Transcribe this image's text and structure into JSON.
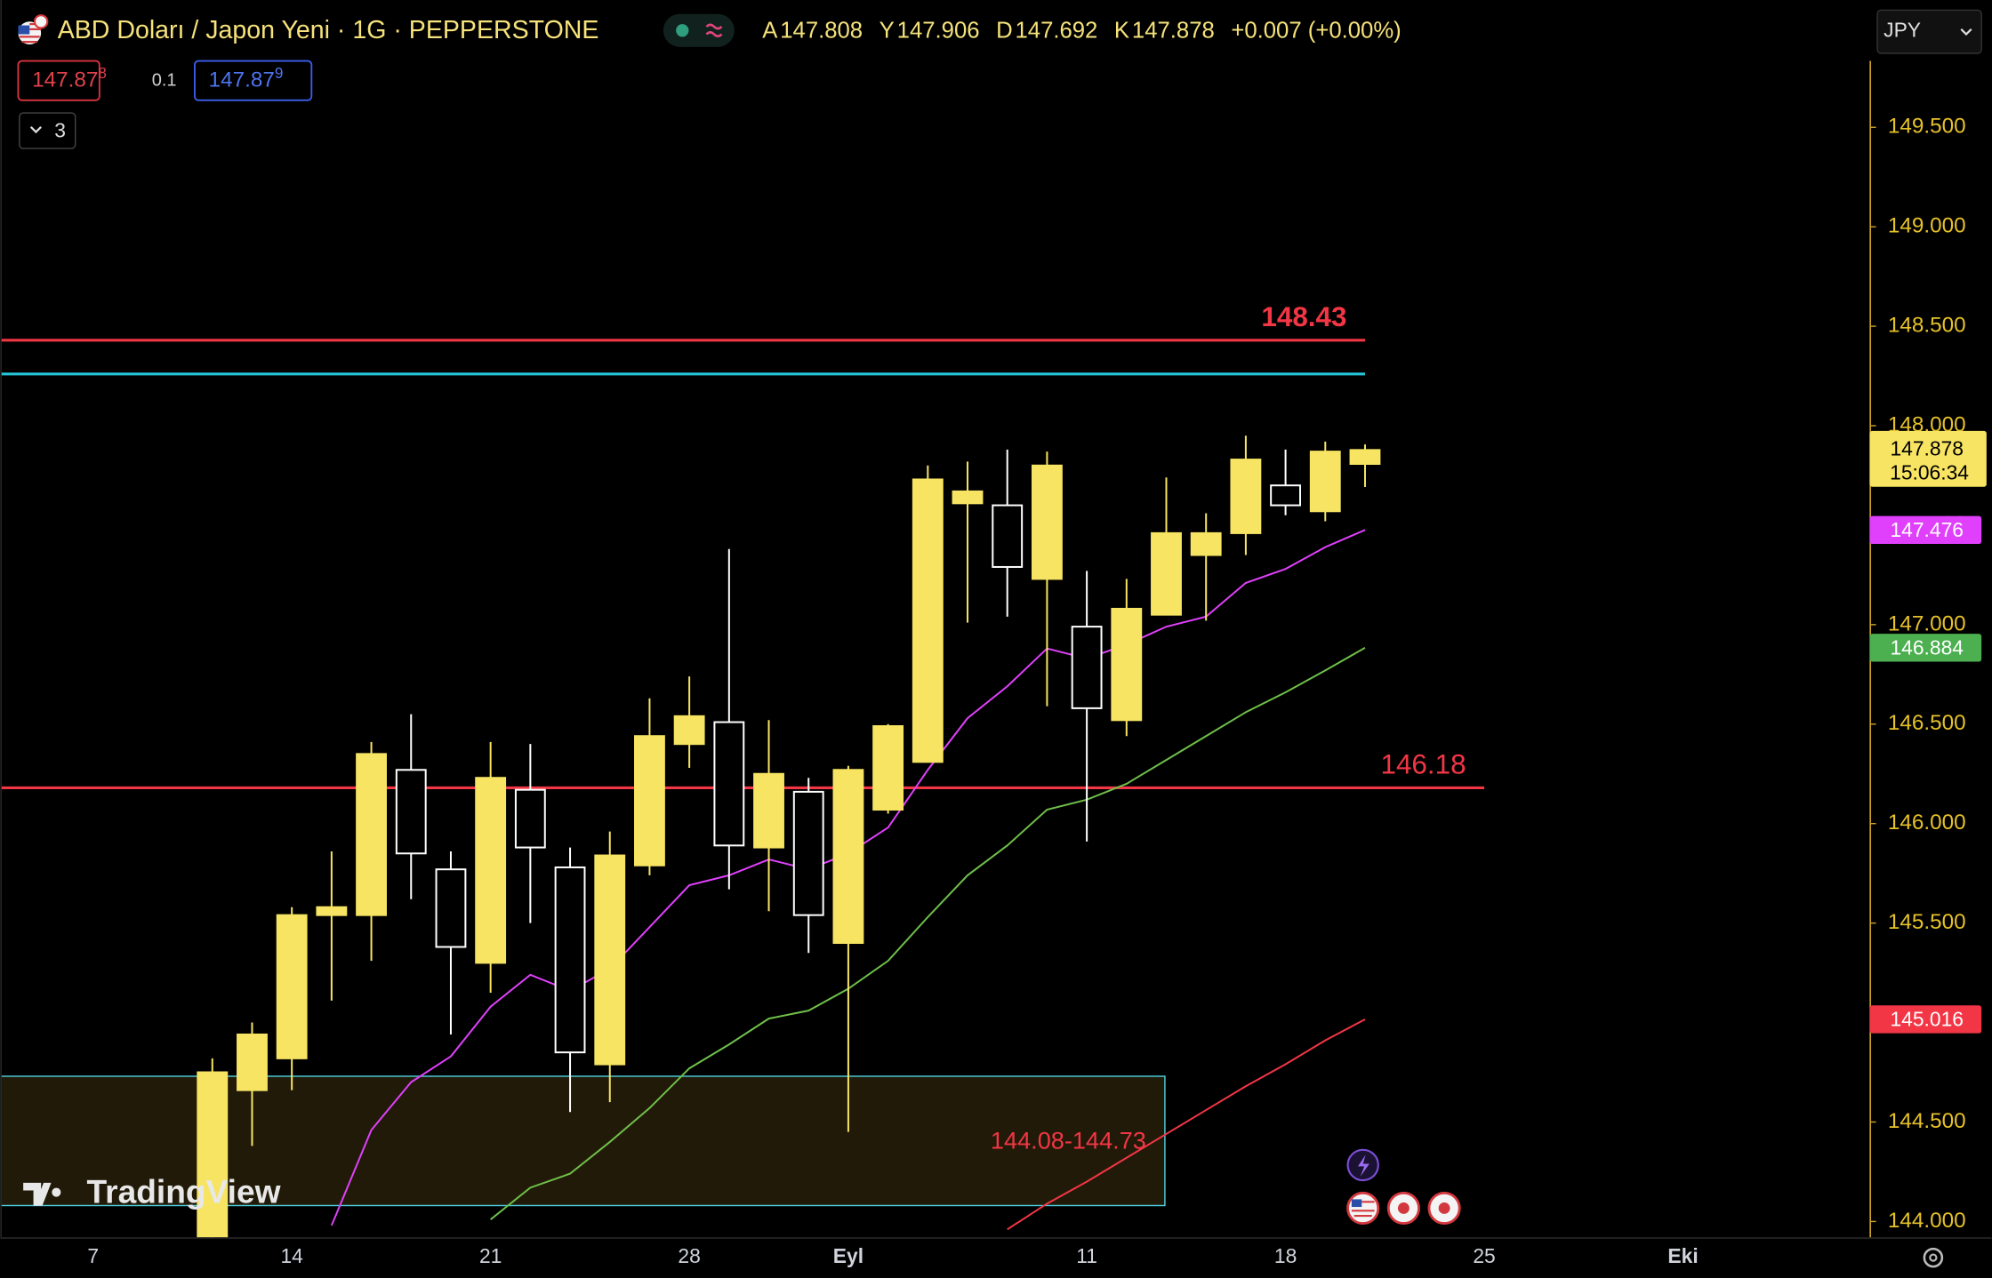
{
  "header": {
    "symbol_title": "ABD Doları / Japon Yeni · 1G · PEPPERSTONE",
    "ohlc_labels": [
      "A",
      "Y",
      "D",
      "K"
    ],
    "change": "+0.007 (+0.00%)",
    "bid": {
      "price": "147.87",
      "pip": "8"
    },
    "spread": 0.1,
    "ask": {
      "price": "147.87",
      "pip": "9"
    },
    "indicator_count": 3,
    "currency": "JPY",
    "countdown": "15:06:34",
    "logo": "TradingView"
  },
  "chart_data": {
    "type": "candlestick",
    "categories": [
      "7",
      null,
      null,
      null,
      null,
      "14",
      null,
      null,
      null,
      null,
      "21",
      null,
      null,
      null,
      null,
      "28",
      null,
      null,
      null,
      "Eyl",
      null,
      null,
      null,
      null,
      null,
      "11",
      null,
      null,
      null,
      null,
      "18",
      null,
      null,
      null,
      null,
      "25",
      null,
      null,
      null,
      null,
      "Eki"
    ],
    "open": [
      null,
      null,
      null,
      143.88,
      144.66,
      144.82,
      145.54,
      145.54,
      146.27,
      145.77,
      145.3,
      146.17,
      145.78,
      144.79,
      145.79,
      146.4,
      146.51,
      145.88,
      146.16,
      145.4,
      146.07,
      146.31,
      147.61,
      147.6,
      147.23,
      146.99,
      146.52,
      147.05,
      147.35,
      147.46,
      147.7,
      147.57,
      147.808,
      null,
      null,
      null,
      null,
      null,
      null,
      null,
      null
    ],
    "high": [
      null,
      null,
      null,
      144.82,
      145.0,
      145.58,
      145.86,
      146.41,
      146.55,
      145.86,
      146.41,
      146.4,
      145.88,
      145.96,
      146.63,
      146.74,
      147.38,
      146.52,
      146.23,
      146.29,
      146.5,
      147.8,
      147.82,
      147.88,
      147.87,
      147.27,
      147.23,
      147.74,
      147.56,
      147.95,
      147.88,
      147.92,
      147.906,
      null,
      null,
      null,
      null,
      null,
      null,
      null,
      null
    ],
    "low": [
      null,
      null,
      null,
      143.85,
      144.38,
      144.66,
      145.11,
      145.31,
      145.62,
      144.94,
      145.15,
      145.5,
      144.55,
      144.6,
      145.74,
      146.28,
      145.67,
      145.56,
      145.35,
      144.45,
      146.05,
      146.31,
      147.01,
      147.04,
      146.59,
      145.91,
      146.44,
      147.05,
      147.02,
      147.35,
      147.55,
      147.52,
      147.692,
      null,
      null,
      null,
      null,
      null,
      null,
      null,
      null
    ],
    "close": [
      null,
      null,
      null,
      144.75,
      144.94,
      145.54,
      145.58,
      146.35,
      145.85,
      145.38,
      146.23,
      145.88,
      144.85,
      145.84,
      146.44,
      146.54,
      145.89,
      146.25,
      145.54,
      146.27,
      146.49,
      147.73,
      147.67,
      147.29,
      147.8,
      146.58,
      147.08,
      147.46,
      147.46,
      147.83,
      147.6,
      147.87,
      147.878,
      null,
      null,
      null,
      null,
      null,
      null,
      null,
      null
    ],
    "up_color": "#f7e463",
    "down_color": "#ffffff",
    "lines": [
      {
        "color": "#e040fb",
        "values": [
          null,
          null,
          null,
          null,
          null,
          null,
          143.98,
          144.46,
          144.7,
          144.83,
          145.08,
          145.24,
          145.16,
          145.27,
          145.48,
          145.69,
          145.74,
          145.82,
          145.77,
          145.85,
          145.98,
          146.27,
          146.53,
          146.69,
          146.88,
          146.83,
          146.9,
          146.99,
          147.04,
          147.21,
          147.28,
          147.39,
          147.476,
          null,
          null,
          null,
          null,
          null,
          null,
          null,
          null
        ]
      },
      {
        "color": "#6fbf4a",
        "values": [
          null,
          null,
          null,
          null,
          null,
          null,
          null,
          null,
          null,
          null,
          144.01,
          144.17,
          144.24,
          144.4,
          144.57,
          144.77,
          144.89,
          145.02,
          145.06,
          145.17,
          145.31,
          145.53,
          145.74,
          145.89,
          146.07,
          146.12,
          146.2,
          146.32,
          146.44,
          146.56,
          146.66,
          146.77,
          146.884,
          null,
          null,
          null,
          null,
          null,
          null,
          null,
          null
        ]
      },
      {
        "color": "#f23645",
        "values": [
          null,
          null,
          null,
          null,
          null,
          null,
          null,
          null,
          null,
          null,
          null,
          null,
          null,
          null,
          null,
          null,
          null,
          null,
          null,
          null,
          null,
          null,
          null,
          143.96,
          144.09,
          144.2,
          144.32,
          144.44,
          144.56,
          144.68,
          144.79,
          144.91,
          145.016,
          null,
          null,
          null,
          null,
          null,
          null,
          null,
          null
        ]
      }
    ],
    "hlines": [
      {
        "value": 148.43,
        "color": "#f23645",
        "labeled": true
      },
      {
        "value": 148.26,
        "color": "#26c6da",
        "labeled": false
      },
      {
        "value": 146.18,
        "color": "#f23645",
        "labeled": true
      }
    ],
    "zone": {
      "low": 144.08,
      "high": 144.73,
      "label": "144.08-144.73",
      "border": "#4dd0e1",
      "fill": "#221a08",
      "label_color": "#f23645"
    },
    "ylim": [
      143.92,
      150.14
    ],
    "yticks": [
      {
        "value": 144,
        "label": "144.000"
      },
      {
        "value": 144.5,
        "label": "144.500"
      },
      {
        "value": 145,
        "label": "145.000"
      },
      {
        "value": 145.5,
        "label": "145.500"
      },
      {
        "value": 146,
        "label": "146.000"
      },
      {
        "value": 146.5,
        "label": "146.500"
      },
      {
        "value": 147,
        "label": "147.000"
      },
      {
        "value": 147.5,
        "label": "147.500"
      },
      {
        "value": 148,
        "label": "148.000"
      },
      {
        "value": 148.5,
        "label": "148.500"
      },
      {
        "value": 149,
        "label": "149.000"
      },
      {
        "value": 149.5,
        "label": "149.500"
      }
    ]
  }
}
